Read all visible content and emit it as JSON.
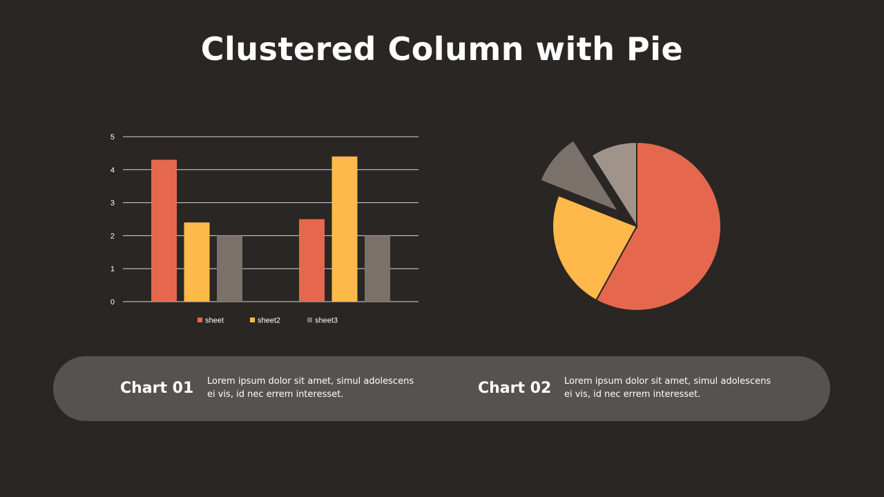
{
  "slide": {
    "title": "Clustered Column with Pie"
  },
  "colors": {
    "background": "#2a2624",
    "panel": "#565250",
    "sheet": "#e5684e",
    "sheet2": "#ffb94a",
    "sheet3": "#7a716a",
    "pie_slice_4": "#a0938a"
  },
  "chart_data": [
    {
      "type": "bar",
      "categories": [
        "",
        ""
      ],
      "series": [
        {
          "name": "sheet",
          "values": [
            4.3,
            2.5
          ],
          "color": "#e5684e"
        },
        {
          "name": "sheet2",
          "values": [
            2.4,
            4.4
          ],
          "color": "#ffb94a"
        },
        {
          "name": "sheet3",
          "values": [
            2.0,
            2.0
          ],
          "color": "#7a716a"
        }
      ],
      "yticks": [
        "0",
        "1",
        "2",
        "3",
        "4",
        "5"
      ],
      "ylim": [
        0,
        5
      ],
      "grid": true,
      "legend": "bottom"
    },
    {
      "type": "pie",
      "slices": [
        {
          "value": 58,
          "color": "#e5684e",
          "exploded": false
        },
        {
          "value": 23,
          "color": "#ffb94a",
          "exploded": false
        },
        {
          "value": 10,
          "color": "#7a716a",
          "exploded": true
        },
        {
          "value": 9,
          "color": "#a0938a",
          "exploded": false
        }
      ],
      "start": "12 o'clock",
      "direction": "clockwise"
    }
  ],
  "captions": [
    {
      "name": "Chart 01",
      "text": "Lorem ipsum dolor sit amet, simul adolescens ei vis, id nec errem interesset."
    },
    {
      "name": "Chart 02",
      "text": "Lorem ipsum dolor sit amet, simul adolescens ei vis, id nec errem interesset."
    }
  ]
}
